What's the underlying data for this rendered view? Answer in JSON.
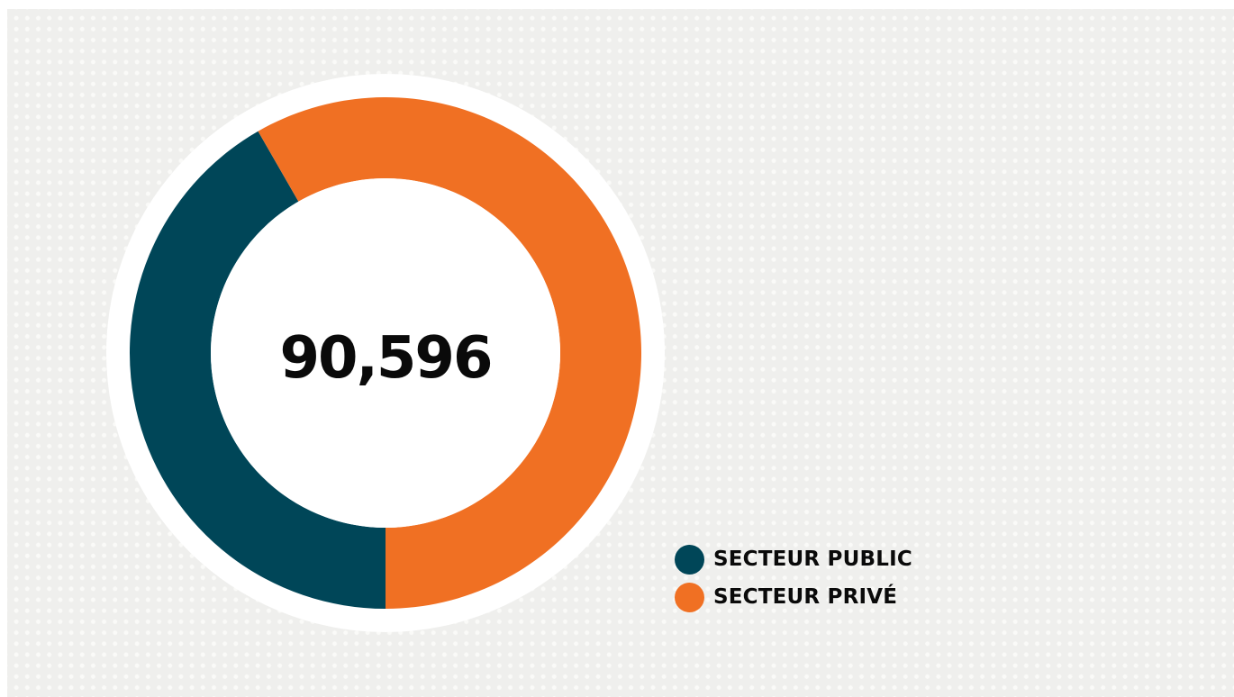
{
  "chart_data": {
    "type": "pie",
    "donut": true,
    "center_label": "90,596",
    "total": 90596,
    "categories": [
      "SECTEUR PUBLIC",
      "SECTEUR PRIVÉ"
    ],
    "values": [
      41.7,
      58.3
    ],
    "value_unit": "percent",
    "colors": [
      "#004658",
      "#f07023"
    ],
    "legend_position": "bottom-right"
  },
  "colors": {
    "background": "#efefed",
    "dots": "#fafaf8",
    "ring_border": "#ffffff",
    "text": "#0a0a0a"
  }
}
